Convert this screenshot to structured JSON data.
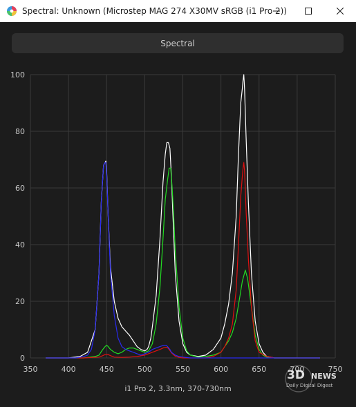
{
  "window": {
    "title": "Spectral: Unknown (Microstep MAG 274 X30MV sRGB (i1 Pro 2))",
    "controls": [
      "minimize",
      "maximize",
      "close"
    ]
  },
  "toolbar": {
    "spectral_label": "Spectral"
  },
  "footer": {
    "caption": "i1 Pro 2, 3.3nm, 370-730nm"
  },
  "watermark": {
    "brand": "3DNEWS",
    "tagline": "Daily Digital Digest"
  },
  "colors": {
    "white": "#ffffff",
    "red": "#e01010",
    "green": "#22dd22",
    "blue": "#2a2af0",
    "grid": "#3a3a3a",
    "background": "#1c1c1c"
  },
  "chart_data": {
    "type": "line",
    "xlim": [
      350,
      750
    ],
    "ylim": [
      0,
      100
    ],
    "xticks": [
      350,
      400,
      450,
      500,
      550,
      600,
      650,
      700,
      750
    ],
    "yticks": [
      0,
      20,
      40,
      60,
      80,
      100
    ],
    "grid": true,
    "series": [
      {
        "color": "#ffffff",
        "x": [
          370,
          375,
          400,
          415,
          425,
          435,
          440,
          443,
          446,
          448,
          449,
          450,
          452,
          455,
          460,
          465,
          470,
          475,
          480,
          485,
          490,
          495,
          500,
          503,
          505,
          508,
          510,
          515,
          520,
          524,
          527,
          529,
          531,
          533,
          535,
          537,
          540,
          545,
          550,
          555,
          560,
          570,
          580,
          590,
          600,
          605,
          610,
          615,
          620,
          623,
          626,
          628,
          629,
          630,
          631,
          633,
          636,
          640,
          645,
          650,
          655,
          660,
          670,
          680,
          690,
          700,
          710,
          720,
          730
        ],
        "y": [
          0,
          0,
          0,
          0.5,
          2,
          10,
          30,
          55,
          68,
          69,
          69.5,
          66,
          50,
          32,
          20,
          14,
          11,
          9.5,
          8,
          6,
          4,
          3,
          2.5,
          3,
          4,
          7,
          11,
          22,
          42,
          62,
          72,
          76,
          76,
          74,
          64,
          50,
          30,
          13,
          5,
          2,
          1,
          0.5,
          1,
          3,
          7,
          12,
          19,
          30,
          50,
          72,
          90,
          95,
          98,
          100,
          95,
          78,
          55,
          30,
          13,
          5,
          2,
          0.5,
          0,
          0,
          0,
          0,
          0,
          0,
          0
        ]
      },
      {
        "color": "#22dd22",
        "x": [
          370,
          400,
          420,
          435,
          440,
          445,
          448,
          450,
          452,
          455,
          460,
          465,
          470,
          475,
          480,
          485,
          490,
          495,
          500,
          505,
          510,
          515,
          520,
          524,
          527,
          530,
          532,
          534,
          536,
          538,
          540,
          545,
          550,
          555,
          560,
          570,
          580,
          590,
          600,
          605,
          610,
          615,
          620,
          625,
          628,
          630,
          632,
          635,
          640,
          645,
          650,
          655,
          660,
          670,
          680,
          690,
          700,
          710,
          720,
          730
        ],
        "y": [
          0,
          0,
          0,
          0.5,
          1,
          3,
          4,
          4.5,
          4,
          3,
          2,
          1.5,
          2,
          3,
          3.5,
          3.5,
          3,
          2.5,
          2,
          2.5,
          5,
          12,
          25,
          42,
          56,
          63,
          67,
          67,
          60,
          50,
          38,
          18,
          7,
          2.5,
          1,
          0.3,
          0.5,
          1,
          2,
          4,
          6,
          9,
          14,
          22,
          27,
          29,
          31,
          28,
          18,
          8,
          3,
          1,
          0.3,
          0,
          0,
          0,
          0,
          0,
          0,
          0
        ]
      },
      {
        "color": "#e01010",
        "x": [
          370,
          400,
          420,
          440,
          445,
          448,
          450,
          452,
          455,
          460,
          470,
          480,
          490,
          500,
          510,
          520,
          525,
          528,
          530,
          532,
          535,
          540,
          545,
          550,
          560,
          570,
          580,
          590,
          600,
          605,
          610,
          615,
          620,
          623,
          626,
          628,
          629,
          630,
          631,
          633,
          636,
          640,
          645,
          650,
          660,
          670,
          680,
          700,
          720,
          730
        ],
        "y": [
          0,
          0,
          0,
          0.3,
          0.8,
          1.2,
          1.3,
          1.2,
          0.8,
          0.3,
          0.2,
          0.3,
          0.5,
          1,
          2,
          3,
          3.6,
          3.8,
          3.6,
          3,
          1.8,
          0.6,
          0.2,
          0,
          0,
          0,
          0,
          0.5,
          2,
          4,
          7,
          12,
          24,
          40,
          57,
          64,
          67,
          69,
          66,
          52,
          35,
          18,
          6,
          2,
          0.5,
          0,
          0,
          0,
          0,
          0
        ]
      },
      {
        "color": "#2a2af0",
        "x": [
          370,
          400,
          410,
          420,
          425,
          430,
          435,
          440,
          443,
          446,
          448,
          449,
          450,
          452,
          455,
          460,
          465,
          470,
          475,
          480,
          485,
          490,
          495,
          500,
          505,
          510,
          515,
          520,
          525,
          528,
          530,
          533,
          535,
          540,
          545,
          550,
          560,
          580,
          600,
          620,
          640,
          660,
          680,
          700,
          720,
          730
        ],
        "y": [
          0,
          0,
          0,
          0.5,
          1,
          3,
          10,
          30,
          55,
          68,
          69,
          69,
          65,
          50,
          30,
          15,
          7,
          4,
          3,
          2.5,
          2,
          1.5,
          1,
          1.5,
          2,
          3,
          3.5,
          4,
          4.5,
          4.5,
          4,
          3,
          2,
          1,
          0.5,
          0.3,
          0,
          0,
          0,
          0,
          0,
          0,
          0,
          0,
          0,
          0
        ]
      }
    ]
  }
}
